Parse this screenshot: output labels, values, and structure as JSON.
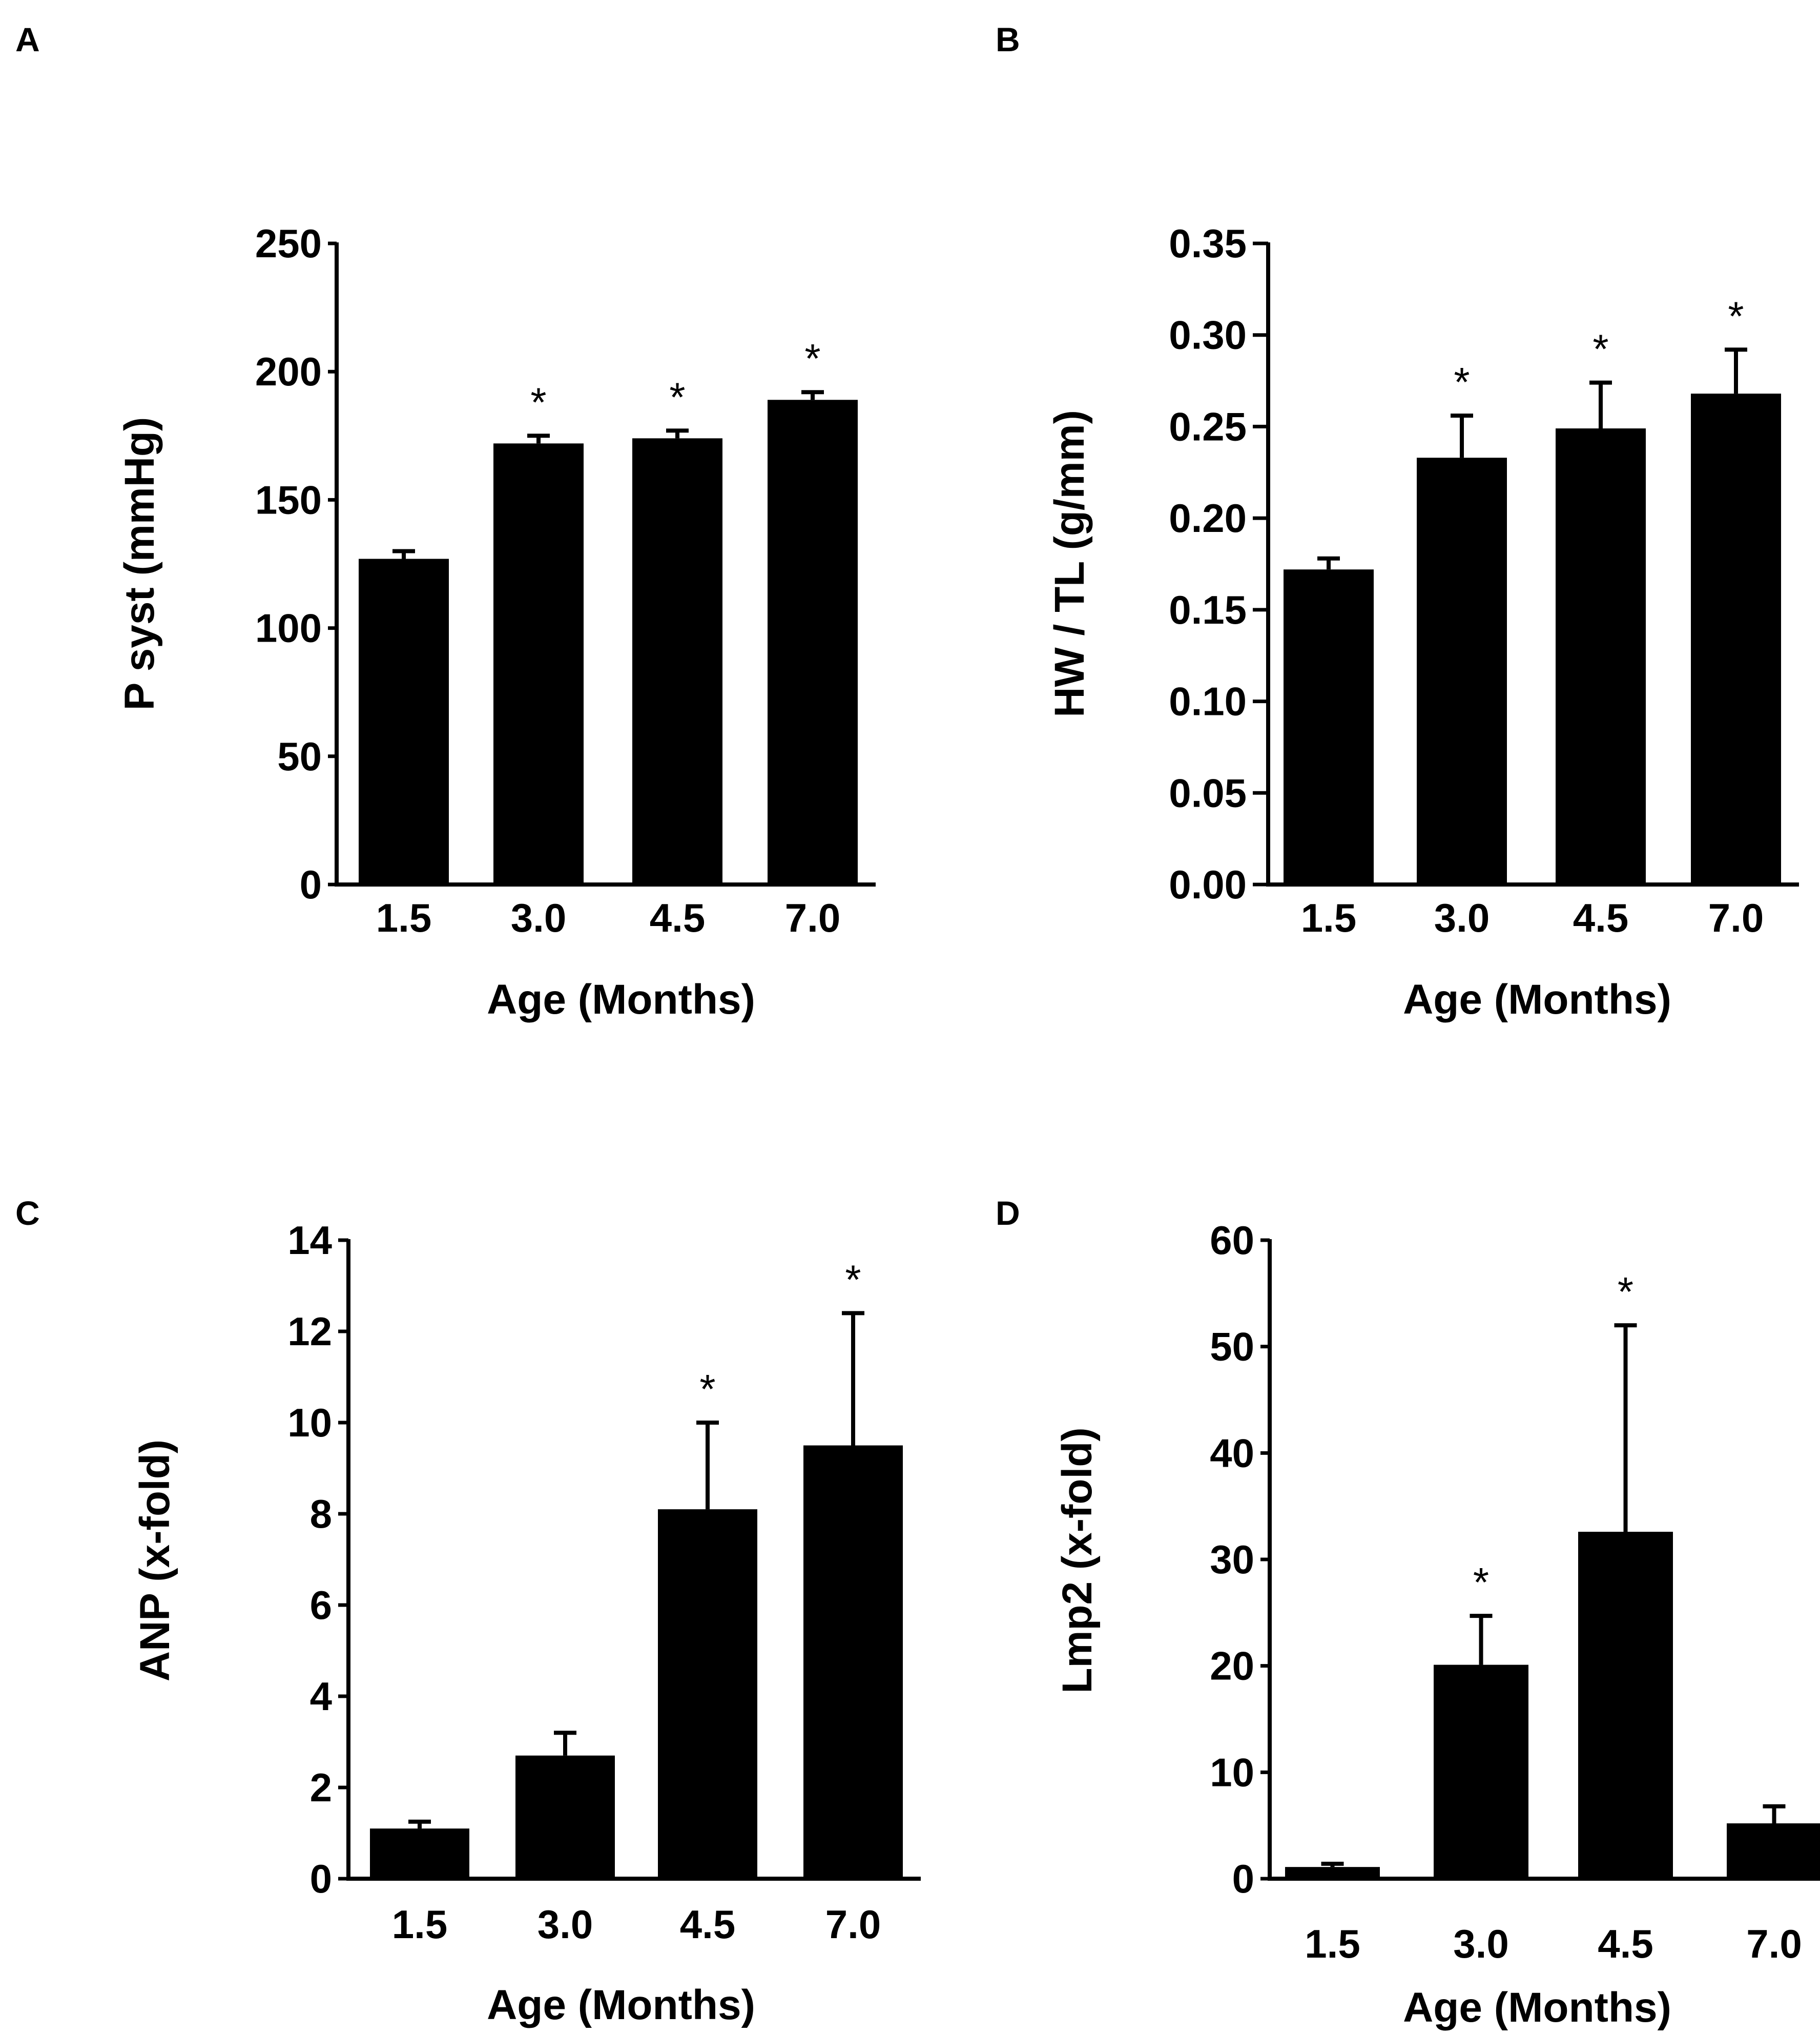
{
  "chart_data": [
    {
      "panel": "A",
      "type": "bar",
      "categories": [
        "1.5",
        "3.0",
        "4.5",
        "7.0"
      ],
      "values": [
        127,
        172,
        174,
        189
      ],
      "errors": [
        3,
        3,
        3,
        3
      ],
      "significance": [
        "",
        "*",
        "*",
        "*"
      ],
      "xlabel": "Age (Months)",
      "ylabel": "P syst (mmHg)",
      "ylim": [
        0,
        250
      ],
      "yticks": [
        "0",
        "50",
        "100",
        "150",
        "200",
        "250"
      ],
      "color": "#000000"
    },
    {
      "panel": "B",
      "type": "bar",
      "categories": [
        "1.5",
        "3.0",
        "4.5",
        "7.0"
      ],
      "values": [
        0.172,
        0.233,
        0.249,
        0.268
      ],
      "errors": [
        0.006,
        0.023,
        0.025,
        0.024
      ],
      "significance": [
        "",
        "*",
        "*",
        "*"
      ],
      "xlabel": "Age (Months)",
      "ylabel": "HW / TL (g/mm)",
      "ylim": [
        0,
        0.35
      ],
      "yticks": [
        "0.00",
        "0.05",
        "0.10",
        "0.15",
        "0.20",
        "0.25",
        "0.30",
        "0.35"
      ],
      "color": "#000000"
    },
    {
      "panel": "C",
      "type": "bar",
      "categories": [
        "1.5",
        "3.0",
        "4.5",
        "7.0"
      ],
      "values": [
        1.1,
        2.7,
        8.1,
        9.5
      ],
      "errors": [
        0.15,
        0.5,
        1.9,
        2.9
      ],
      "significance": [
        "",
        "",
        "*",
        "*"
      ],
      "xlabel": "Age (Months)",
      "ylabel": "ANP (x-fold)",
      "ylim": [
        0,
        14
      ],
      "yticks": [
        "0",
        "2",
        "4",
        "6",
        "8",
        "10",
        "12",
        "14"
      ],
      "color": "#000000"
    },
    {
      "panel": "D",
      "type": "bar",
      "categories": [
        "1.5",
        "3.0",
        "4.5",
        "7.0"
      ],
      "values": [
        1.1,
        20.1,
        32.6,
        5.2
      ],
      "errors": [
        0.3,
        4.6,
        19.4,
        1.6
      ],
      "significance": [
        "",
        "*",
        "*",
        ""
      ],
      "xlabel": "Age (Months)",
      "ylabel": "Lmp2 (x-fold)",
      "ylim": [
        0,
        60
      ],
      "yticks": [
        "0",
        "10",
        "20",
        "30",
        "40",
        "50",
        "60"
      ],
      "color": "#000000"
    }
  ]
}
